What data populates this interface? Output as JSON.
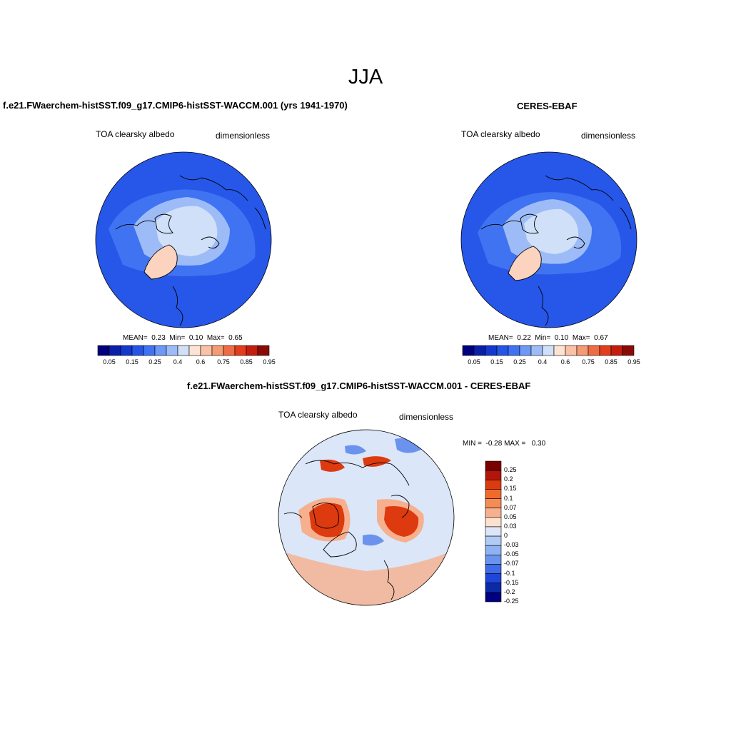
{
  "title": "JJA",
  "panels": [
    {
      "id": "model",
      "title": "f.e21.FWaerchem-histSST.f09_g17.CMIP6-histSST-WACCM.001 (yrs 1941-1970)",
      "variable": "TOA clearsky albedo",
      "units": "dimensionless",
      "stats": {
        "mean_label": "MEAN=",
        "mean": "0.23",
        "min_label": "Min=",
        "min": "0.10",
        "max_label": "Max=",
        "max": "0.65"
      }
    },
    {
      "id": "obs",
      "title": "CERES-EBAF",
      "variable": "TOA clearsky albedo",
      "units": "dimensionless",
      "stats": {
        "mean_label": "MEAN=",
        "mean": "0.22",
        "min_label": "Min=",
        "min": "0.10",
        "max_label": "Max=",
        "max": "0.67"
      }
    },
    {
      "id": "diff",
      "title": "f.e21.FWaerchem-histSST.f09_g17.CMIP6-histSST-WACCM.001 - CERES-EBAF",
      "variable": "TOA clearsky albedo",
      "units": "dimensionless",
      "minmax": "MIN =  -0.28 MAX =   0.30"
    }
  ],
  "colorbar_abs": {
    "colors": [
      "#00007f",
      "#0a1fa8",
      "#1238cc",
      "#2455e6",
      "#3f73f2",
      "#6e98f6",
      "#9dbcf7",
      "#cfe0f8",
      "#fde3d3",
      "#f9c1a5",
      "#f49a74",
      "#ee6c45",
      "#e43d1d",
      "#c41d0e",
      "#8c0a05"
    ],
    "labels": [
      "0.05",
      "0.15",
      "0.25",
      "0.4",
      "0.6",
      "0.75",
      "0.85",
      "0.95"
    ]
  },
  "colorbar_diff": {
    "colors": [
      "#7a0000",
      "#b3150a",
      "#dd3a10",
      "#f26a2a",
      "#f48c55",
      "#f6b08d",
      "#fde0cd",
      "#dbe6f8",
      "#b2cbf4",
      "#8fb2f1",
      "#6b93ee",
      "#3e6bea",
      "#1f46db",
      "#0d2aa6",
      "#000080"
    ],
    "labels": [
      "0.25",
      "0.2",
      "0.15",
      "0.1",
      "0.07",
      "0.05",
      "0.03",
      "0",
      "-0.03",
      "-0.05",
      "-0.07",
      "-0.1",
      "-0.15",
      "-0.2",
      "-0.25"
    ]
  },
  "map_colors": {
    "ocean": "#2657e8",
    "ocean_light": "#3f73f2",
    "ice": "#cfe0f8",
    "ice_mid": "#9dbcf7",
    "greenland": "#fbd3be",
    "diff_bg": "#dbe6f8",
    "diff_warm": "#dd3a10",
    "diff_warm_light": "#f6b08d",
    "diff_cool": "#6b93ee"
  }
}
